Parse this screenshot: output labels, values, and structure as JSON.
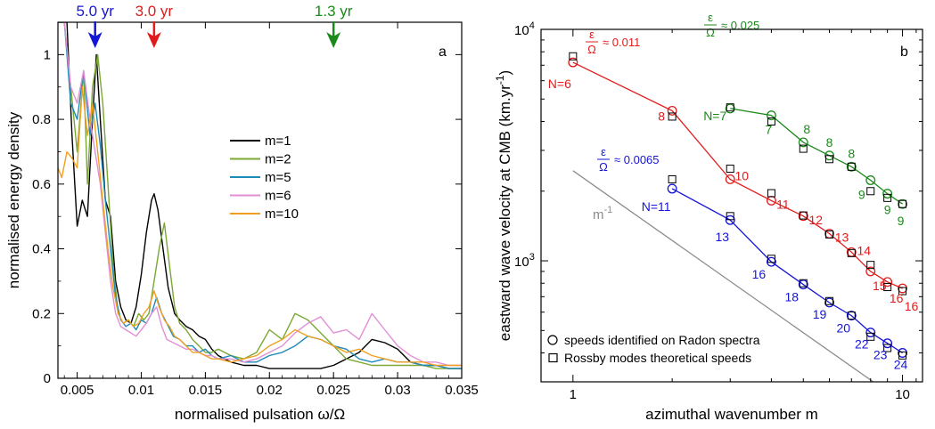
{
  "chart_data": [
    {
      "type": "line",
      "panel_label": "a",
      "xlabel": "normalised pulsation ω/Ω",
      "ylabel": "normalised energy density",
      "xlim": [
        0.0035,
        0.035
      ],
      "ylim": [
        0,
        1.1
      ],
      "x_ticks": [
        0.005,
        0.01,
        0.015,
        0.02,
        0.025,
        0.03,
        0.035
      ],
      "x_tick_labels": [
        "0.005",
        "0.01",
        "0.015",
        "0.02",
        "0.025",
        "0.03",
        "0.035"
      ],
      "y_ticks": [
        0,
        0.2,
        0.4,
        0.6,
        0.8,
        1
      ],
      "y_tick_labels": [
        "0",
        "0.2",
        "0.4",
        "0.6",
        "0.8",
        "1"
      ],
      "legend_position": "center-right",
      "period_markers": [
        {
          "label": "5.0 yr",
          "x": 0.0064,
          "color": "#1515d6"
        },
        {
          "label": "3.0 yr",
          "x": 0.011,
          "color": "#e11b1b"
        },
        {
          "label": "1.3 yr",
          "x": 0.025,
          "color": "#1a8a1a"
        }
      ],
      "series": [
        {
          "name": "m=1",
          "color": "#000000",
          "x": [
            0.0035,
            0.0042,
            0.0046,
            0.005,
            0.0054,
            0.0058,
            0.0062,
            0.0065,
            0.0068,
            0.0072,
            0.0076,
            0.008,
            0.0084,
            0.0088,
            0.0092,
            0.0096,
            0.01,
            0.0104,
            0.0108,
            0.011,
            0.0113,
            0.0117,
            0.0121,
            0.0126,
            0.013,
            0.0135,
            0.014,
            0.0145,
            0.015,
            0.0155,
            0.016,
            0.017,
            0.018,
            0.019,
            0.02,
            0.021,
            0.022,
            0.023,
            0.024,
            0.025,
            0.026,
            0.027,
            0.028,
            0.029,
            0.03,
            0.031,
            0.032,
            0.033,
            0.034,
            0.035
          ],
          "y": [
            1.1,
            1.1,
            0.75,
            0.47,
            0.55,
            0.5,
            0.8,
            1.0,
            0.8,
            0.55,
            0.5,
            0.3,
            0.22,
            0.18,
            0.17,
            0.22,
            0.32,
            0.45,
            0.55,
            0.57,
            0.52,
            0.4,
            0.28,
            0.2,
            0.18,
            0.16,
            0.15,
            0.13,
            0.12,
            0.09,
            0.07,
            0.05,
            0.04,
            0.04,
            0.03,
            0.03,
            0.03,
            0.03,
            0.03,
            0.04,
            0.06,
            0.08,
            0.12,
            0.11,
            0.09,
            0.05,
            0.04,
            0.04,
            0.03,
            0.03
          ]
        },
        {
          "name": "m=2",
          "color": "#7aa832",
          "x": [
            0.0035,
            0.004,
            0.0045,
            0.005,
            0.0055,
            0.0058,
            0.0062,
            0.0066,
            0.007,
            0.0074,
            0.0078,
            0.0082,
            0.0086,
            0.009,
            0.0094,
            0.0098,
            0.0102,
            0.0106,
            0.011,
            0.0114,
            0.0118,
            0.0122,
            0.0126,
            0.013,
            0.0135,
            0.014,
            0.0145,
            0.015,
            0.0155,
            0.016,
            0.017,
            0.018,
            0.019,
            0.02,
            0.021,
            0.022,
            0.023,
            0.024,
            0.025,
            0.026,
            0.027,
            0.028,
            0.029,
            0.03,
            0.031,
            0.032,
            0.033,
            0.034,
            0.035
          ],
          "y": [
            1.1,
            1.1,
            0.9,
            0.7,
            0.95,
            0.6,
            0.9,
            1.0,
            0.85,
            0.6,
            0.35,
            0.2,
            0.17,
            0.18,
            0.16,
            0.2,
            0.18,
            0.2,
            0.3,
            0.4,
            0.48,
            0.35,
            0.22,
            0.17,
            0.15,
            0.12,
            0.1,
            0.08,
            0.08,
            0.09,
            0.07,
            0.06,
            0.08,
            0.15,
            0.12,
            0.2,
            0.18,
            0.14,
            0.1,
            0.06,
            0.05,
            0.04,
            0.04,
            0.04,
            0.04,
            0.04,
            0.03,
            0.03,
            0.03
          ]
        },
        {
          "name": "m=5",
          "color": "#1e8ab8",
          "x": [
            0.0035,
            0.004,
            0.0045,
            0.005,
            0.0055,
            0.006,
            0.0064,
            0.0068,
            0.0072,
            0.0076,
            0.008,
            0.0084,
            0.0088,
            0.0092,
            0.0096,
            0.01,
            0.0104,
            0.0108,
            0.0112,
            0.0116,
            0.012,
            0.0125,
            0.013,
            0.0135,
            0.014,
            0.0145,
            0.015,
            0.0155,
            0.016,
            0.017,
            0.018,
            0.019,
            0.02,
            0.021,
            0.022,
            0.023,
            0.024,
            0.025,
            0.026,
            0.027,
            0.028,
            0.029,
            0.03,
            0.031,
            0.032,
            0.033,
            0.034,
            0.035
          ],
          "y": [
            1.1,
            1.1,
            0.85,
            0.8,
            0.95,
            0.75,
            0.85,
            0.72,
            0.55,
            0.4,
            0.25,
            0.18,
            0.16,
            0.17,
            0.15,
            0.18,
            0.17,
            0.2,
            0.25,
            0.2,
            0.17,
            0.13,
            0.12,
            0.1,
            0.1,
            0.08,
            0.09,
            0.07,
            0.06,
            0.07,
            0.05,
            0.05,
            0.07,
            0.08,
            0.1,
            0.13,
            0.12,
            0.1,
            0.09,
            0.06,
            0.05,
            0.06,
            0.05,
            0.05,
            0.04,
            0.04,
            0.03,
            0.03
          ]
        },
        {
          "name": "m=6",
          "color": "#e28fd6",
          "x": [
            0.0035,
            0.004,
            0.0045,
            0.005,
            0.0055,
            0.006,
            0.0064,
            0.0068,
            0.0072,
            0.0076,
            0.008,
            0.0084,
            0.0088,
            0.0092,
            0.0096,
            0.01,
            0.0104,
            0.0108,
            0.0112,
            0.0116,
            0.012,
            0.0125,
            0.013,
            0.0135,
            0.014,
            0.0145,
            0.015,
            0.0155,
            0.016,
            0.017,
            0.018,
            0.019,
            0.02,
            0.021,
            0.022,
            0.023,
            0.024,
            0.025,
            0.026,
            0.027,
            0.028,
            0.029,
            0.03,
            0.031,
            0.032,
            0.033,
            0.034,
            0.035
          ],
          "y": [
            1.1,
            1.1,
            0.9,
            0.85,
            0.95,
            0.8,
            0.7,
            0.6,
            0.45,
            0.3,
            0.2,
            0.16,
            0.15,
            0.14,
            0.13,
            0.15,
            0.17,
            0.2,
            0.22,
            0.16,
            0.12,
            0.11,
            0.1,
            0.09,
            0.09,
            0.08,
            0.07,
            0.07,
            0.06,
            0.06,
            0.05,
            0.06,
            0.08,
            0.1,
            0.14,
            0.17,
            0.19,
            0.14,
            0.15,
            0.12,
            0.2,
            0.15,
            0.1,
            0.07,
            0.05,
            0.05,
            0.04,
            0.04
          ]
        },
        {
          "name": "m=10",
          "color": "#f0a020",
          "x": [
            0.0035,
            0.0038,
            0.0042,
            0.0046,
            0.005,
            0.0054,
            0.0058,
            0.0062,
            0.0066,
            0.007,
            0.0074,
            0.0078,
            0.0082,
            0.0086,
            0.009,
            0.0094,
            0.0098,
            0.0102,
            0.0106,
            0.011,
            0.0114,
            0.0118,
            0.0122,
            0.0126,
            0.013,
            0.0135,
            0.014,
            0.0145,
            0.015,
            0.0155,
            0.016,
            0.017,
            0.018,
            0.019,
            0.02,
            0.021,
            0.022,
            0.023,
            0.024,
            0.025,
            0.026,
            0.027,
            0.028,
            0.029,
            0.03,
            0.031,
            0.032,
            0.033,
            0.034,
            0.035
          ],
          "y": [
            0.65,
            0.62,
            0.7,
            0.68,
            0.65,
            0.9,
            0.75,
            0.85,
            0.7,
            0.55,
            0.4,
            0.28,
            0.2,
            0.17,
            0.18,
            0.16,
            0.17,
            0.2,
            0.22,
            0.27,
            0.22,
            0.18,
            0.16,
            0.13,
            0.12,
            0.1,
            0.08,
            0.08,
            0.07,
            0.06,
            0.06,
            0.05,
            0.06,
            0.07,
            0.1,
            0.12,
            0.15,
            0.13,
            0.12,
            0.1,
            0.08,
            0.09,
            0.07,
            0.06,
            0.05,
            0.05,
            0.05,
            0.04,
            0.04,
            0.04
          ]
        }
      ]
    },
    {
      "type": "scatter",
      "panel_label": "b",
      "xlabel": "azimuthal wavenumber m",
      "ylabel": "eastward wave velocity at CMB (km.yr",
      "ylabel_superscript": "-1",
      "ylabel_suffix": ")",
      "xscale": "log",
      "yscale": "log",
      "xlim": [
        0.8,
        11.5
      ],
      "ylim": [
        300,
        10000
      ],
      "x_tick_labels": [
        {
          "value": 1,
          "label": "1"
        },
        {
          "value": 10,
          "label": "10"
        }
      ],
      "y_tick_labels": [
        {
          "value": 1000,
          "base": "10",
          "exp": "3"
        },
        {
          "value": 10000,
          "base": "10",
          "exp": "4"
        }
      ],
      "legend": [
        {
          "marker": "circle",
          "label": "speeds identified on Radon spectra"
        },
        {
          "marker": "square",
          "label": "Rossby modes theoretical speeds"
        }
      ],
      "reference_line": {
        "label_base": "m",
        "label_exp": "-1",
        "color": "#8c8c8c",
        "points": [
          [
            1,
            2450
          ],
          [
            9.4,
            260
          ]
        ]
      },
      "series": [
        {
          "color": "#e11b1b",
          "ratio_label": {
            "numerator": "ε",
            "denominator": "Ω",
            "value": "≈ 0.011"
          },
          "m": [
            1,
            2,
            3,
            4,
            5,
            6,
            7,
            8,
            9,
            10
          ],
          "radon": [
            7200,
            4450,
            2250,
            1820,
            1560,
            1310,
            1090,
            900,
            810,
            760
          ],
          "rossby": [
            7650,
            4200,
            2500,
            1960,
            1570,
            1300,
            1080,
            960,
            770,
            740
          ],
          "N_labels": [
            "N=6",
            "8",
            "10",
            "11",
            "12",
            "13",
            "14",
            "15",
            "16",
            "16"
          ]
        },
        {
          "color": "#1a8a1a",
          "ratio_label": {
            "numerator": "ε",
            "denominator": "Ω",
            "value": "≈ 0.025"
          },
          "m": [
            3,
            4,
            5,
            6,
            7,
            8,
            9,
            10
          ],
          "radon": [
            4550,
            4250,
            3250,
            2850,
            2550,
            2230,
            1950,
            1760
          ],
          "rossby": [
            4600,
            4000,
            3050,
            2750,
            2550,
            2000,
            1870,
            1760
          ],
          "N_labels": [
            "N=7",
            "7",
            "8",
            "8",
            "8",
            "9",
            "9",
            "9"
          ]
        },
        {
          "color": "#1515d6",
          "ratio_label": {
            "numerator": "ε",
            "denominator": "Ω",
            "value": "≈ 0.0065"
          },
          "m": [
            2,
            3,
            4,
            5,
            6,
            7,
            8,
            9,
            10
          ],
          "radon": [
            2050,
            1500,
            990,
            790,
            660,
            580,
            490,
            440,
            400
          ],
          "rossby": [
            2250,
            1560,
            1020,
            800,
            670,
            580,
            470,
            420,
            390
          ],
          "N_labels": [
            "N=11",
            "13",
            "16",
            "18",
            "19",
            "20",
            "22",
            "23",
            "24"
          ]
        }
      ]
    }
  ]
}
